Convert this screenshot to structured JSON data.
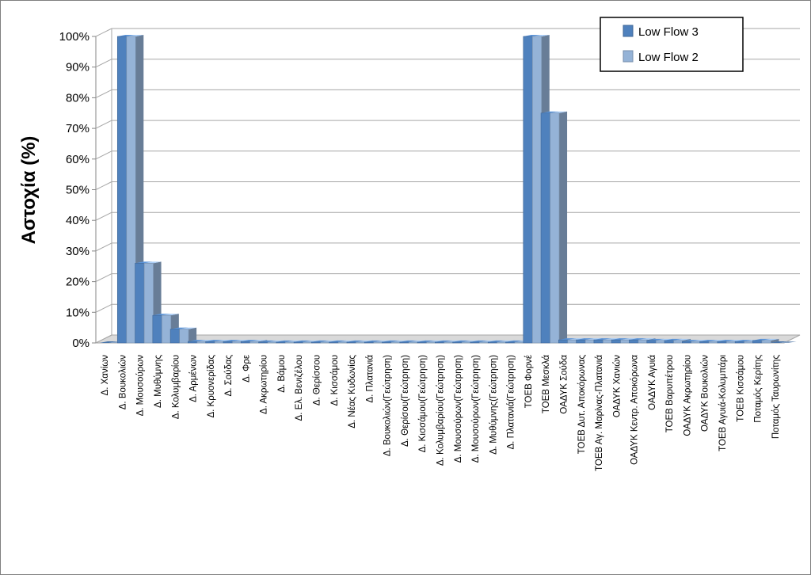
{
  "chart_data": {
    "type": "bar",
    "ylabel": "Αστοχία (%)",
    "ylim": [
      0,
      100
    ],
    "yticks": [
      "0%",
      "10%",
      "20%",
      "30%",
      "40%",
      "50%",
      "60%",
      "70%",
      "80%",
      "90%",
      "100%"
    ],
    "grid": true,
    "legend_position": "top-right",
    "categories": [
      "Δ. Χανίων",
      "Δ. Βουκολιών",
      "Δ. Μουσούρων",
      "Δ. Μυθύμνης",
      "Δ. Κολυμβαρίου",
      "Δ. Αρμένων",
      "Δ. Κρυονερίδας",
      "Δ. Σούδας",
      "Δ. Φρε",
      "Δ. Ακρωτηρίου",
      "Δ. Βάμου",
      "Δ. Ελ. Βενιζέλου",
      "Δ. Θερίσσου",
      "Δ. Κισσάμου",
      "Δ. Νέας Κυδωνίας",
      "Δ. Πλατανιά",
      "Δ. Βουκολιών(Γεώτρηση)",
      "Δ. Θερίσου(Γεώτρηση)",
      "Δ. Κισσάμου(Γεώτρηση)",
      "Δ. Κολυμβαρίου(Γεώτρηση)",
      "Δ. Μουσούρων(Γεώτρηση)",
      "Δ. Μουσούρων(Γεώτρηση)",
      "Δ. Μυθύμνης(Γεώτρηση)",
      "Δ. Πλατανιά(Γεώτρηση)",
      "ΤΟΕΒ Φορνέ",
      "ΤΟΕΒ Μεσκλά",
      "ΟΑΔΥΚ Σούδα",
      "ΤΟΕΒ Δυτ. Αποκόρωνας",
      "ΤΟΕΒ Αγ. Μαρίνας-Πλατανιά",
      "ΟΑΔΥΚ Χανιών",
      "ΟΑΔΥΚ Κεντρ. Αποκόρωνα",
      "ΟΑΔΥΚ Αγυιά",
      "ΤΟΕΒ Βαρυπέτρου",
      "ΟΑΔΥΚ Ακρωτηρίου",
      "ΟΑΔΥΚ Βουκολιών",
      "ΤΟΕΒ Αγυιά-Κολυμπάρι",
      "ΤΟΕΒ Κισσάμου",
      "Ποταμός Κερίτης",
      "Ποταμός Ταυρωνίτης"
    ],
    "series": [
      {
        "name": "Low Flow 3",
        "color": "#4f81bd",
        "values": [
          0,
          100,
          26,
          9,
          4.5,
          0.5,
          0.5,
          0.5,
          0.5,
          0.3,
          0.3,
          0.3,
          0.3,
          0.3,
          0.3,
          0.3,
          0.3,
          0.3,
          0.3,
          0.3,
          0.3,
          0.3,
          0.3,
          0.3,
          100,
          75,
          1,
          1,
          1,
          1,
          1,
          0.8,
          0.8,
          0.5,
          0.5,
          0.5,
          0.5,
          0.8,
          0
        ]
      },
      {
        "name": "Low Flow 2",
        "color": "#95b3d7",
        "values": [
          0,
          100,
          26,
          9,
          4.5,
          0.5,
          0.5,
          0.5,
          0.5,
          0.3,
          0.3,
          0.3,
          0.3,
          0.3,
          0.3,
          0.3,
          0.3,
          0.3,
          0.3,
          0.3,
          0.3,
          0.3,
          0.3,
          0.3,
          100,
          75,
          1,
          1,
          1,
          1,
          1,
          0.8,
          0.8,
          0.5,
          0.5,
          0.5,
          0.5,
          0.8,
          0
        ]
      }
    ]
  }
}
